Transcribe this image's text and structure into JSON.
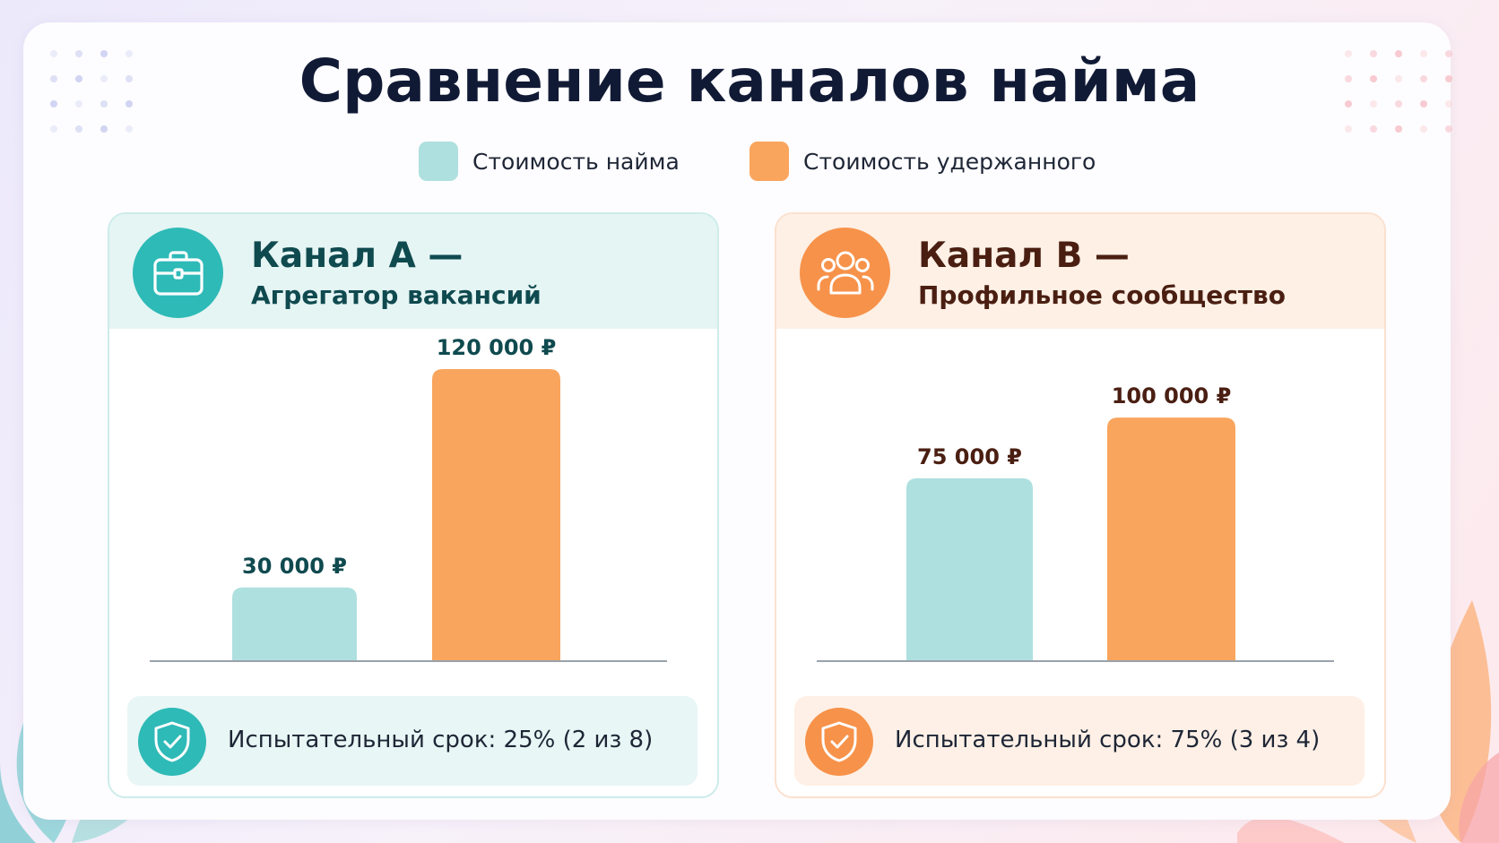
{
  "title": "Сравнение каналов найма",
  "legend": [
    {
      "label": "Стоимость найма",
      "color": "#aee0df"
    },
    {
      "label": "Стоимость удержанного",
      "color": "#f9a55d"
    }
  ],
  "colors": {
    "teal_bar": "#aee0df",
    "orange_bar": "#f9a55d",
    "teal_accent": "#2ebab7",
    "orange_accent": "#f7924a",
    "teal_dark": "#0f4a4f",
    "brown_dark": "#4a1f12"
  },
  "channels": [
    {
      "title": "Канал А —",
      "subtitle": "Агрегатор вакансий",
      "icon": "briefcase-icon",
      "probation": "Испытательный срок: 25% (2 из 8)",
      "probation_icon": "shield-check-icon"
    },
    {
      "title": "Канал В —",
      "subtitle": "Профильное сообщество",
      "icon": "users-icon",
      "probation": "Испытательный срок: 75% (3 из 4)",
      "probation_icon": "shield-check-icon"
    }
  ],
  "chart_data": [
    {
      "type": "bar",
      "title": "Канал А — Агрегатор вакансий",
      "categories": [
        "Стоимость найма",
        "Стоимость удержанного"
      ],
      "values": [
        30000,
        120000
      ],
      "value_labels": [
        "30 000 ₽",
        "120 000 ₽"
      ],
      "ylim": [
        0,
        120000
      ],
      "grid": false
    },
    {
      "type": "bar",
      "title": "Канал В — Профильное сообщество",
      "categories": [
        "Стоимость найма",
        "Стоимость удержанного"
      ],
      "values": [
        75000,
        100000
      ],
      "value_labels": [
        "75 000 ₽",
        "100 000 ₽"
      ],
      "ylim": [
        0,
        120000
      ],
      "grid": false
    }
  ]
}
